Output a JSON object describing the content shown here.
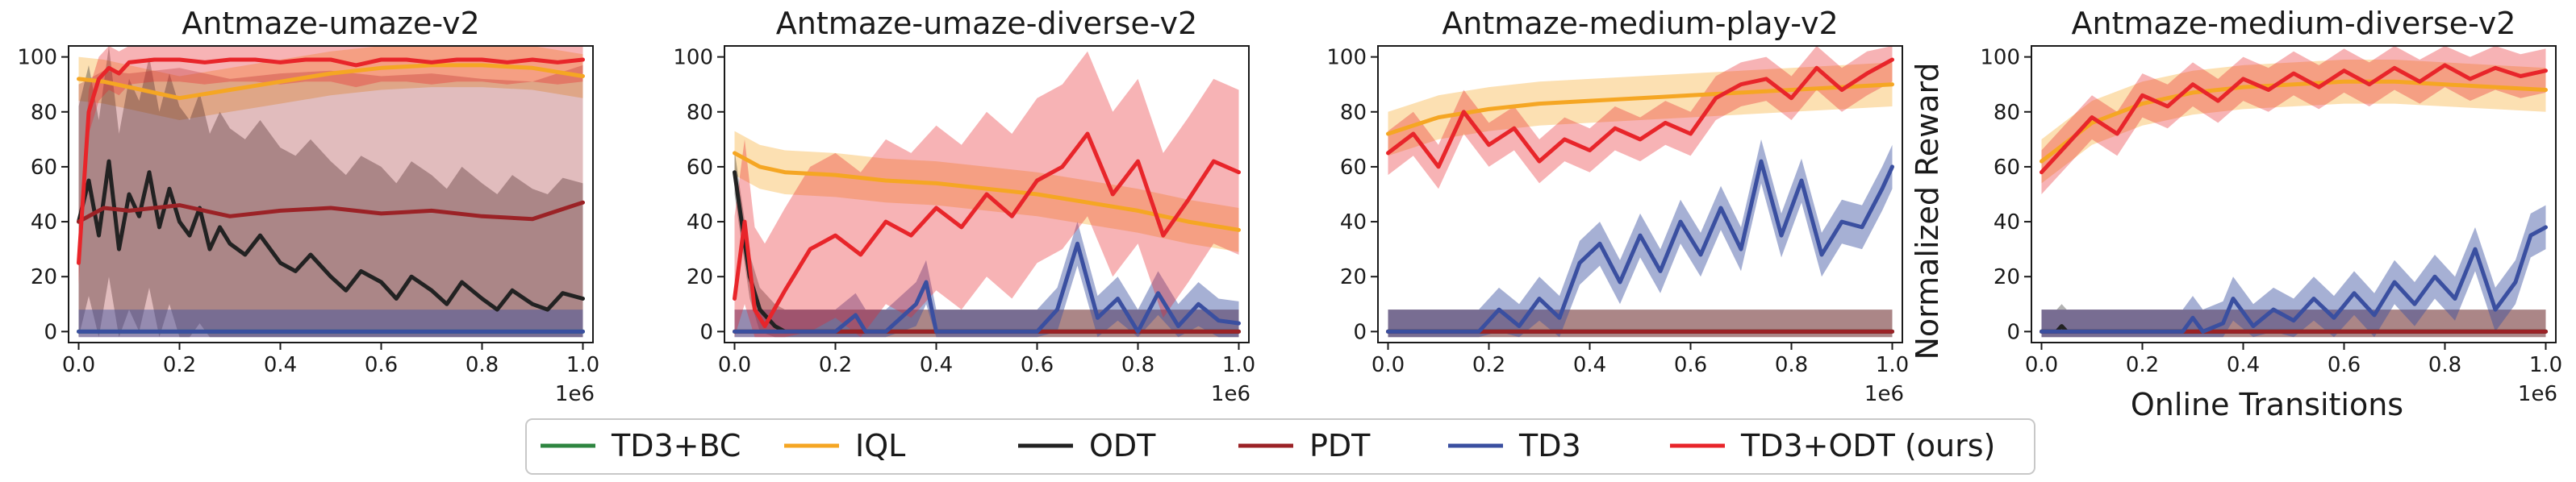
{
  "figure": {
    "y_axis_label": "Normalized Reward",
    "x_axis_label": "Online Transitions",
    "x_multiplier_label": "1e6",
    "x_tick_labels": [
      "0.0",
      "0.2",
      "0.4",
      "0.6",
      "0.8",
      "1.0"
    ],
    "y_tick_labels": [
      "0",
      "20",
      "40",
      "60",
      "80",
      "100"
    ]
  },
  "legend": {
    "entries": [
      {
        "label": "TD3+BC",
        "color": "#2e8540"
      },
      {
        "label": "IQL",
        "color": "#f5a623"
      },
      {
        "label": "ODT",
        "color": "#222222"
      },
      {
        "label": "PDT",
        "color": "#9b2226"
      },
      {
        "label": "TD3",
        "color": "#3a4fa0"
      },
      {
        "label": "TD3+ODT (ours)",
        "color": "#e8252a"
      }
    ]
  },
  "chart_data": [
    {
      "type": "line",
      "title": "Antmaze-umaze-v2",
      "xlabel": "",
      "ylabel": "",
      "xlim": [
        -0.02,
        1.02
      ],
      "ylim": [
        -4,
        104
      ],
      "grid": false,
      "series": [
        {
          "name": "TD3+BC",
          "color": "#2e8540",
          "x": [
            0,
            0.2,
            0.4,
            0.6,
            0.8,
            1.0
          ],
          "y": [
            0,
            0,
            0,
            0,
            0,
            0
          ]
        },
        {
          "name": "IQL",
          "color": "#f5a623",
          "x": [
            0,
            0.05,
            0.1,
            0.15,
            0.2,
            0.3,
            0.4,
            0.5,
            0.6,
            0.7,
            0.8,
            0.9,
            1.0
          ],
          "y": [
            92,
            91,
            89,
            87,
            85,
            88,
            91,
            94,
            96,
            97,
            97,
            96,
            93
          ]
        },
        {
          "name": "ODT",
          "color": "#222222",
          "x": [
            0,
            0.02,
            0.04,
            0.06,
            0.08,
            0.1,
            0.12,
            0.14,
            0.16,
            0.18,
            0.2,
            0.22,
            0.24,
            0.26,
            0.28,
            0.3,
            0.33,
            0.36,
            0.4,
            0.43,
            0.46,
            0.5,
            0.53,
            0.56,
            0.6,
            0.63,
            0.66,
            0.7,
            0.73,
            0.76,
            0.8,
            0.83,
            0.86,
            0.9,
            0.93,
            0.96,
            1.0
          ],
          "y": [
            40,
            55,
            35,
            62,
            30,
            50,
            42,
            58,
            38,
            52,
            40,
            35,
            45,
            30,
            38,
            32,
            28,
            35,
            25,
            22,
            28,
            20,
            15,
            22,
            18,
            12,
            20,
            15,
            10,
            18,
            12,
            8,
            15,
            10,
            8,
            14,
            12
          ]
        },
        {
          "name": "PDT",
          "color": "#9b2226",
          "x": [
            0,
            0.05,
            0.1,
            0.2,
            0.3,
            0.4,
            0.5,
            0.6,
            0.7,
            0.8,
            0.9,
            1.0
          ],
          "y": [
            40,
            45,
            44,
            46,
            42,
            44,
            45,
            43,
            44,
            42,
            41,
            47
          ]
        },
        {
          "name": "TD3",
          "color": "#3a4fa0",
          "x": [
            0,
            0.2,
            0.4,
            0.6,
            0.8,
            1.0
          ],
          "y": [
            0,
            0,
            0,
            0,
            0,
            0
          ]
        },
        {
          "name": "TD3+ODT (ours)",
          "color": "#e8252a",
          "x": [
            0,
            0.02,
            0.04,
            0.06,
            0.08,
            0.1,
            0.15,
            0.2,
            0.25,
            0.3,
            0.35,
            0.4,
            0.45,
            0.5,
            0.55,
            0.6,
            0.65,
            0.7,
            0.75,
            0.8,
            0.85,
            0.9,
            0.95,
            1.0
          ],
          "y": [
            25,
            80,
            92,
            96,
            94,
            98,
            99,
            99,
            98,
            99,
            99,
            98,
            99,
            99,
            97,
            99,
            99,
            98,
            99,
            99,
            98,
            99,
            98,
            99
          ]
        }
      ]
    },
    {
      "type": "line",
      "title": "Antmaze-umaze-diverse-v2",
      "xlabel": "",
      "ylabel": "",
      "xlim": [
        -0.02,
        1.02
      ],
      "ylim": [
        -4,
        104
      ],
      "grid": false,
      "series": [
        {
          "name": "TD3+BC",
          "color": "#2e8540",
          "x": [
            0,
            0.2,
            0.4,
            0.6,
            0.8,
            1.0
          ],
          "y": [
            0,
            0,
            0,
            0,
            0,
            0
          ]
        },
        {
          "name": "IQL",
          "color": "#f5a623",
          "x": [
            0,
            0.05,
            0.1,
            0.2,
            0.3,
            0.4,
            0.5,
            0.6,
            0.7,
            0.8,
            0.9,
            1.0
          ],
          "y": [
            65,
            60,
            58,
            57,
            55,
            54,
            52,
            50,
            47,
            44,
            40,
            37
          ]
        },
        {
          "name": "ODT",
          "color": "#222222",
          "x": [
            0,
            0.01,
            0.03,
            0.05,
            0.08,
            0.1,
            0.2,
            0.4,
            0.6,
            0.8,
            1.0
          ],
          "y": [
            58,
            45,
            20,
            8,
            2,
            0,
            0,
            0,
            0,
            0,
            0
          ]
        },
        {
          "name": "PDT",
          "color": "#9b2226",
          "x": [
            0,
            0.2,
            0.4,
            0.6,
            0.8,
            1.0
          ],
          "y": [
            0,
            0,
            0,
            0,
            0,
            0
          ]
        },
        {
          "name": "TD3",
          "color": "#3a4fa0",
          "x": [
            0,
            0.2,
            0.24,
            0.26,
            0.3,
            0.36,
            0.38,
            0.4,
            0.5,
            0.6,
            0.64,
            0.68,
            0.72,
            0.76,
            0.8,
            0.84,
            0.88,
            0.92,
            0.96,
            1.0
          ],
          "y": [
            0,
            0,
            6,
            0,
            0,
            10,
            18,
            0,
            0,
            0,
            8,
            32,
            5,
            12,
            0,
            14,
            2,
            10,
            4,
            3
          ]
        },
        {
          "name": "TD3+ODT (ours)",
          "color": "#e8252a",
          "x": [
            0,
            0.02,
            0.04,
            0.06,
            0.1,
            0.15,
            0.2,
            0.25,
            0.3,
            0.35,
            0.4,
            0.45,
            0.5,
            0.55,
            0.6,
            0.65,
            0.7,
            0.75,
            0.8,
            0.85,
            0.9,
            0.95,
            1.0
          ],
          "y": [
            12,
            40,
            8,
            2,
            15,
            30,
            35,
            28,
            40,
            35,
            45,
            38,
            50,
            42,
            55,
            60,
            72,
            50,
            62,
            35,
            48,
            62,
            58
          ]
        }
      ]
    },
    {
      "type": "line",
      "title": "Antmaze-medium-play-v2",
      "xlabel": "",
      "ylabel": "Normalized Reward",
      "xlim": [
        -0.02,
        1.02
      ],
      "ylim": [
        -4,
        104
      ],
      "grid": false,
      "series": [
        {
          "name": "TD3+BC",
          "color": "#2e8540",
          "x": [
            0,
            0.2,
            0.4,
            0.6,
            0.8,
            1.0
          ],
          "y": [
            0,
            0,
            0,
            0,
            0,
            0
          ]
        },
        {
          "name": "IQL",
          "color": "#f5a623",
          "x": [
            0,
            0.1,
            0.2,
            0.3,
            0.4,
            0.5,
            0.6,
            0.7,
            0.8,
            0.9,
            1.0
          ],
          "y": [
            72,
            78,
            81,
            83,
            84,
            85,
            86,
            87,
            88,
            89,
            90
          ]
        },
        {
          "name": "ODT",
          "color": "#222222",
          "x": [
            0,
            0.2,
            0.4,
            0.6,
            0.8,
            1.0
          ],
          "y": [
            0,
            0,
            0,
            0,
            0,
            0
          ]
        },
        {
          "name": "PDT",
          "color": "#9b2226",
          "x": [
            0,
            0.2,
            0.4,
            0.6,
            0.8,
            1.0
          ],
          "y": [
            0,
            0,
            0,
            0,
            0,
            0
          ]
        },
        {
          "name": "TD3",
          "color": "#3a4fa0",
          "x": [
            0,
            0.18,
            0.22,
            0.26,
            0.3,
            0.34,
            0.38,
            0.42,
            0.46,
            0.5,
            0.54,
            0.58,
            0.62,
            0.66,
            0.7,
            0.74,
            0.78,
            0.82,
            0.86,
            0.9,
            0.94,
            0.98,
            1.0
          ],
          "y": [
            0,
            0,
            8,
            2,
            12,
            5,
            25,
            32,
            18,
            35,
            22,
            40,
            28,
            45,
            30,
            62,
            35,
            55,
            28,
            40,
            38,
            52,
            60
          ]
        },
        {
          "name": "TD3+ODT (ours)",
          "color": "#e8252a",
          "x": [
            0,
            0.05,
            0.1,
            0.15,
            0.2,
            0.25,
            0.3,
            0.35,
            0.4,
            0.45,
            0.5,
            0.55,
            0.6,
            0.65,
            0.7,
            0.75,
            0.8,
            0.85,
            0.9,
            0.95,
            1.0
          ],
          "y": [
            65,
            72,
            60,
            80,
            68,
            74,
            62,
            70,
            66,
            74,
            70,
            76,
            72,
            85,
            90,
            92,
            85,
            96,
            88,
            94,
            99
          ]
        }
      ]
    },
    {
      "type": "line",
      "title": "Antmaze-medium-diverse-v2",
      "xlabel": "Online Transitions",
      "ylabel": "",
      "xlim": [
        -0.02,
        1.02
      ],
      "ylim": [
        -4,
        104
      ],
      "grid": false,
      "series": [
        {
          "name": "TD3+BC",
          "color": "#2e8540",
          "x": [
            0,
            0.2,
            0.4,
            0.6,
            0.8,
            1.0
          ],
          "y": [
            0,
            0,
            0,
            0,
            0,
            0
          ]
        },
        {
          "name": "IQL",
          "color": "#f5a623",
          "x": [
            0,
            0.1,
            0.2,
            0.3,
            0.4,
            0.5,
            0.6,
            0.7,
            0.8,
            0.9,
            1.0
          ],
          "y": [
            62,
            76,
            83,
            87,
            89,
            90,
            91,
            91,
            90,
            89,
            88
          ]
        },
        {
          "name": "ODT",
          "color": "#222222",
          "x": [
            0,
            0.03,
            0.04,
            0.05,
            0.07,
            0.2,
            0.4,
            0.6,
            0.8,
            1.0
          ],
          "y": [
            0,
            0,
            2,
            0,
            0,
            0,
            0,
            0,
            0,
            0
          ]
        },
        {
          "name": "PDT",
          "color": "#9b2226",
          "x": [
            0,
            0.2,
            0.4,
            0.6,
            0.8,
            1.0
          ],
          "y": [
            0,
            0,
            0,
            0,
            0,
            0
          ]
        },
        {
          "name": "TD3",
          "color": "#3a4fa0",
          "x": [
            0,
            0.28,
            0.3,
            0.32,
            0.36,
            0.38,
            0.42,
            0.46,
            0.5,
            0.54,
            0.58,
            0.62,
            0.66,
            0.7,
            0.74,
            0.78,
            0.82,
            0.86,
            0.9,
            0.94,
            0.97,
            1.0
          ],
          "y": [
            0,
            0,
            5,
            0,
            3,
            12,
            2,
            8,
            4,
            12,
            5,
            14,
            6,
            18,
            10,
            20,
            12,
            30,
            8,
            18,
            35,
            38
          ]
        },
        {
          "name": "TD3+ODT (ours)",
          "color": "#e8252a",
          "x": [
            0,
            0.05,
            0.1,
            0.15,
            0.2,
            0.25,
            0.3,
            0.35,
            0.4,
            0.45,
            0.5,
            0.55,
            0.6,
            0.65,
            0.7,
            0.75,
            0.8,
            0.85,
            0.9,
            0.95,
            1.0
          ],
          "y": [
            58,
            68,
            78,
            72,
            86,
            82,
            90,
            84,
            92,
            88,
            94,
            89,
            95,
            90,
            96,
            91,
            97,
            92,
            96,
            93,
            95
          ]
        }
      ]
    }
  ]
}
